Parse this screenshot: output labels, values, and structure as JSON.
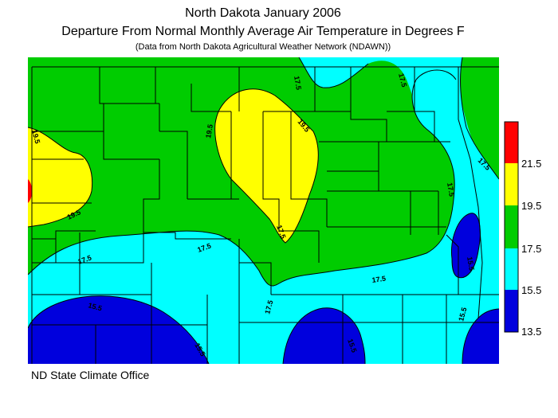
{
  "title": "North Dakota January 2006",
  "subtitle": "Departure From Normal Monthly Average Air Temperature in Degrees F",
  "source_note": "(Data from North Dakota Agricultural Weather Network (NDAWN))",
  "credit": "ND State Climate Office",
  "legend": {
    "bins": [
      {
        "min": 21.5,
        "color": "#ff0000"
      },
      {
        "min": 19.5,
        "max": 21.5,
        "color": "#ffff00"
      },
      {
        "min": 17.5,
        "max": 19.5,
        "color": "#00cc00"
      },
      {
        "min": 15.5,
        "max": 17.5,
        "color": "#00ffff"
      },
      {
        "min": 13.5,
        "max": 15.5,
        "color": "#0000dd"
      }
    ],
    "tick_labels": [
      "21.5",
      "19.5",
      "17.5",
      "15.5",
      "13.5"
    ]
  },
  "contour_labels": [
    "19.5",
    "17.5",
    "17.5",
    "19.5",
    "19.5",
    "19.5",
    "17.5",
    "17.5",
    "17.5",
    "17.5",
    "17.5",
    "17.5",
    "17.5",
    "15.5",
    "15.5",
    "15.5",
    "15.5",
    "15.5"
  ]
}
